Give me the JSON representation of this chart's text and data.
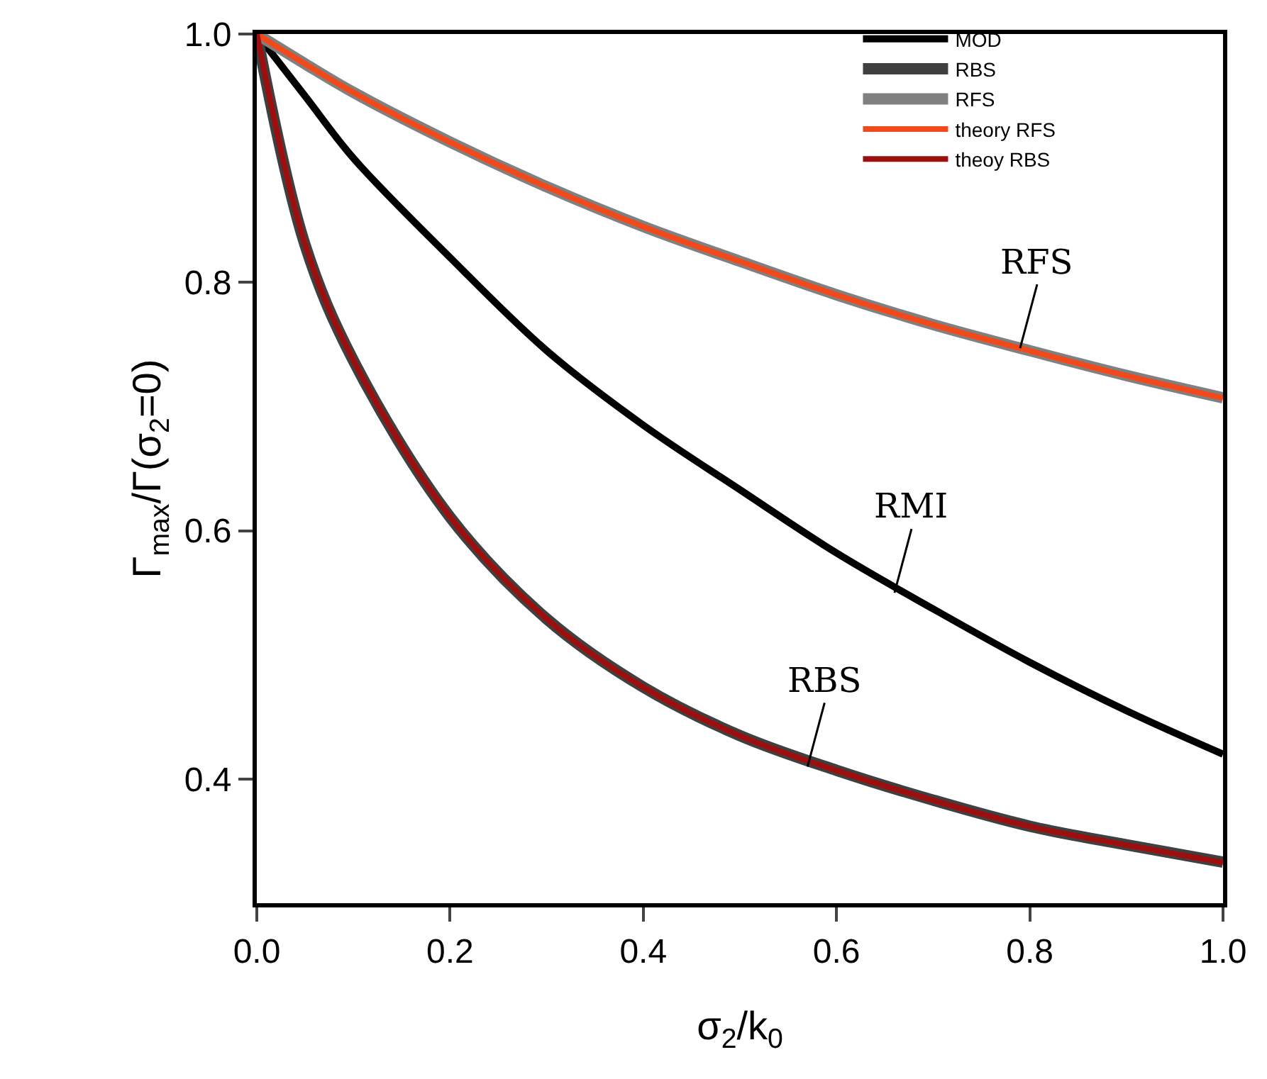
{
  "chart_data": {
    "type": "line",
    "xlabel": "σ$_{2}$/k$_{0}$",
    "ylabel": "Γ$_{max}$/Γ(σ$_{2}$=0)",
    "x": [
      0,
      0.05,
      0.1,
      0.2,
      0.3,
      0.4,
      0.5,
      0.6,
      0.7,
      0.8,
      0.9,
      1.0
    ],
    "series": [
      {
        "name": "MOD",
        "color": "#000000",
        "values": [
          1.0,
          0.95,
          0.9,
          0.82,
          0.745,
          0.685,
          0.633,
          0.582,
          0.537,
          0.494,
          0.455,
          0.42
        ]
      },
      {
        "name": "RBS",
        "color": "#404040",
        "values": [
          1.0,
          0.83,
          0.737,
          0.611,
          0.529,
          0.474,
          0.435,
          0.407,
          0.383,
          0.362,
          0.347,
          0.333
        ]
      },
      {
        "name": "RFS",
        "color": "#808080",
        "values": [
          1.0,
          0.976,
          0.953,
          0.913,
          0.877,
          0.845,
          0.817,
          0.79,
          0.766,
          0.745,
          0.725,
          0.707
        ]
      },
      {
        "name": "theory RFS",
        "color": "#f04a1c",
        "values": [
          1.0,
          0.976,
          0.953,
          0.913,
          0.877,
          0.845,
          0.817,
          0.79,
          0.766,
          0.745,
          0.725,
          0.707
        ]
      },
      {
        "name": "theoy RBS",
        "color": "#9c0f0f",
        "values": [
          1.0,
          0.83,
          0.737,
          0.611,
          0.529,
          0.474,
          0.435,
          0.407,
          0.383,
          0.362,
          0.347,
          0.333
        ]
      }
    ],
    "annotations": [
      {
        "text": "RFS",
        "x": 0.79,
        "y": 0.747
      },
      {
        "text": "RMI",
        "x": 0.66,
        "y": 0.55
      },
      {
        "text": "RBS",
        "x": 0.57,
        "y": 0.41
      }
    ],
    "xlim": [
      0,
      1.0
    ],
    "xticks": [
      {
        "value": 0,
        "label": "0.0"
      },
      0.2,
      0.4,
      0.6,
      0.8,
      {
        "value": 1,
        "label": "1.0"
      }
    ],
    "ylim": [
      0.3,
      1.0
    ],
    "yticks": [
      0.4,
      0.6,
      0.8,
      {
        "value": 1,
        "label": "1.0"
      }
    ],
    "grid": false,
    "legend": "top right",
    "marker": "none",
    "line_style": "solid"
  }
}
